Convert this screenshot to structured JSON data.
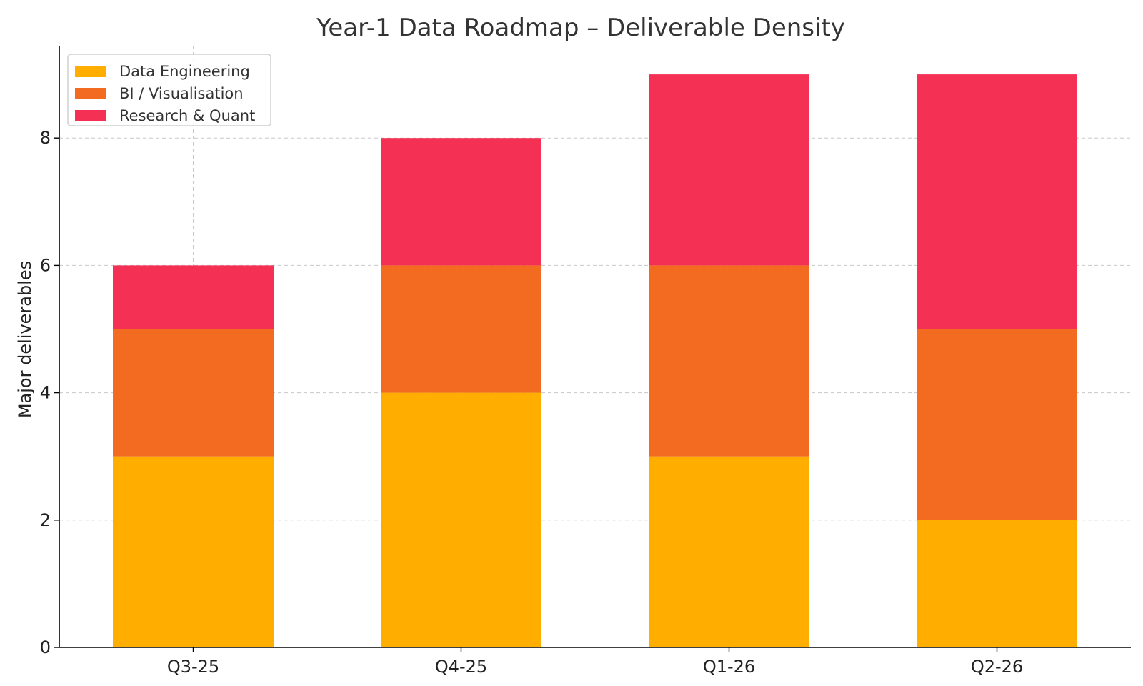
{
  "chart_data": {
    "type": "bar",
    "stacked": true,
    "title": "Year-1 Data Roadmap – Deliverable Density",
    "xlabel": "",
    "ylabel": "Major deliverables",
    "categories": [
      "Q3-25",
      "Q4-25",
      "Q1-26",
      "Q2-26"
    ],
    "series": [
      {
        "name": "Data Engineering",
        "color": "#FFAE00",
        "values": [
          3,
          4,
          3,
          2
        ]
      },
      {
        "name": "BI / Visualisation",
        "color": "#F26B21",
        "values": [
          2,
          2,
          3,
          3
        ]
      },
      {
        "name": "Research & Quant",
        "color": "#F43155",
        "values": [
          1,
          2,
          3,
          4
        ]
      }
    ],
    "ylim": [
      0,
      9.45
    ],
    "yticks": [
      0,
      2,
      4,
      6,
      8
    ],
    "grid": true,
    "legend_position": "top-left"
  }
}
